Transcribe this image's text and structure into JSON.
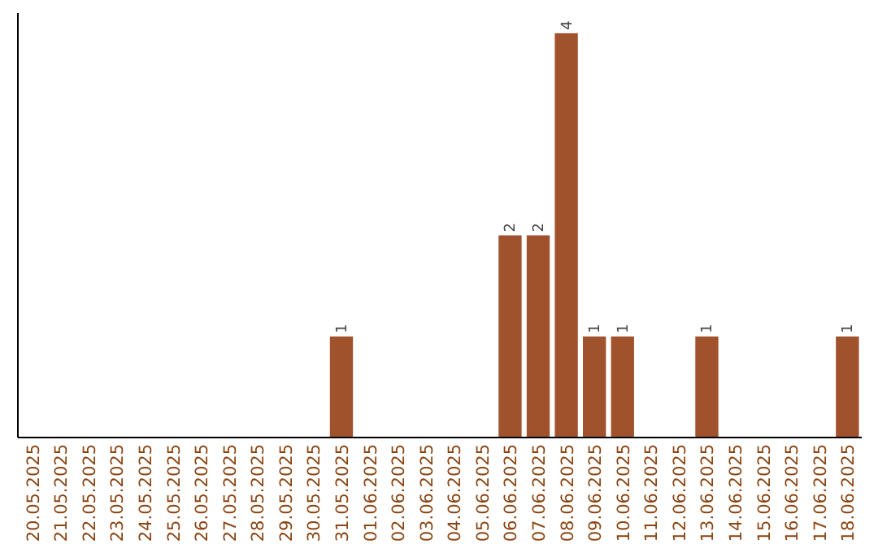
{
  "chart_data": {
    "type": "bar",
    "categories": [
      "20.05.2025",
      "21.05.2025",
      "22.05.2025",
      "23.05.2025",
      "24.05.2025",
      "25.05.2025",
      "26.05.2025",
      "27.05.2025",
      "28.05.2025",
      "29.05.2025",
      "30.05.2025",
      "31.05.2025",
      "01.06.2025",
      "02.06.2025",
      "03.06.2025",
      "04.06.2025",
      "05.06.2025",
      "06.06.2025",
      "07.06.2025",
      "08.06.2025",
      "09.06.2025",
      "10.06.2025",
      "11.06.2025",
      "12.06.2025",
      "13.06.2025",
      "14.06.2025",
      "15.06.2025",
      "16.06.2025",
      "17.06.2025",
      "18.06.2025"
    ],
    "values": [
      0,
      0,
      0,
      0,
      0,
      0,
      0,
      0,
      0,
      0,
      0,
      1,
      0,
      0,
      0,
      0,
      0,
      2,
      2,
      4,
      1,
      1,
      0,
      0,
      1,
      0,
      0,
      0,
      0,
      1
    ],
    "value_labels": [
      null,
      null,
      null,
      null,
      null,
      null,
      null,
      null,
      null,
      null,
      null,
      "1",
      null,
      null,
      null,
      null,
      null,
      "2",
      "2",
      "4",
      "1",
      "1",
      null,
      null,
      "1",
      null,
      null,
      null,
      null,
      "1"
    ],
    "color": "#a0522d",
    "tick_labels": "x"
  }
}
